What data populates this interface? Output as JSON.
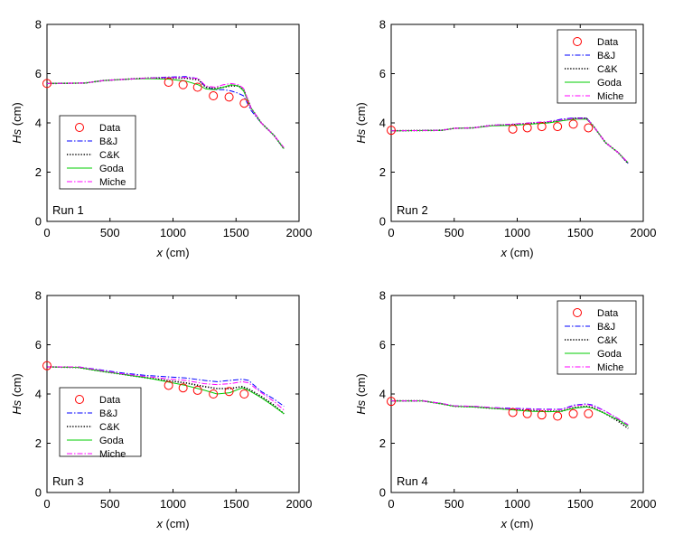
{
  "colors": {
    "data": "#ff0000",
    "bj": "#0000ff",
    "ck": "#000000",
    "goda": "#00cc00",
    "miche": "#ff00ff"
  },
  "legend_entries": [
    "Data",
    "B&J",
    "C&K",
    "Goda",
    "Miche"
  ],
  "chart_data": [
    {
      "type": "line",
      "run_label": "Run 1",
      "xlabel_var": "x",
      "xlabel_unit": " (cm)",
      "ylabel_var": "Hs",
      "ylabel_unit": " (cm)",
      "xlim": [
        0,
        2000
      ],
      "ylim": [
        0,
        8
      ],
      "xticks": [
        0,
        500,
        1000,
        1500,
        2000
      ],
      "yticks": [
        0,
        2,
        4,
        6,
        8
      ],
      "legend_position": "left-middle",
      "data_points": {
        "x": [
          0,
          965,
          1080,
          1195,
          1320,
          1445,
          1565
        ],
        "y": [
          5.6,
          5.65,
          5.55,
          5.45,
          5.1,
          5.05,
          4.8
        ]
      },
      "series": [
        {
          "name": "B&J",
          "x": [
            0,
            300,
            450,
            650,
            800,
            960,
            1100,
            1200,
            1260,
            1330,
            1400,
            1460,
            1520,
            1560,
            1620,
            1700,
            1800,
            1880
          ],
          "y": [
            5.6,
            5.62,
            5.72,
            5.78,
            5.82,
            5.86,
            5.88,
            5.8,
            5.45,
            5.35,
            5.35,
            5.3,
            5.2,
            5.1,
            4.5,
            4.0,
            3.5,
            2.95
          ]
        },
        {
          "name": "C&K",
          "x": [
            0,
            300,
            450,
            650,
            800,
            960,
            1100,
            1200,
            1260,
            1330,
            1400,
            1460,
            1520,
            1560,
            1620,
            1700,
            1800,
            1880
          ],
          "y": [
            5.6,
            5.62,
            5.72,
            5.78,
            5.82,
            5.82,
            5.82,
            5.75,
            5.45,
            5.4,
            5.45,
            5.5,
            5.5,
            5.35,
            4.6,
            4.0,
            3.5,
            2.95
          ]
        },
        {
          "name": "Goda",
          "x": [
            0,
            300,
            450,
            650,
            800,
            960,
            1100,
            1200,
            1260,
            1330,
            1400,
            1460,
            1520,
            1560,
            1620,
            1700,
            1800,
            1880
          ],
          "y": [
            5.6,
            5.62,
            5.72,
            5.78,
            5.8,
            5.78,
            5.7,
            5.55,
            5.38,
            5.35,
            5.45,
            5.55,
            5.5,
            5.3,
            4.6,
            4.0,
            3.5,
            2.95
          ]
        },
        {
          "name": "Miche",
          "x": [
            0,
            300,
            450,
            650,
            800,
            960,
            1100,
            1200,
            1260,
            1330,
            1400,
            1460,
            1520,
            1560,
            1620,
            1700,
            1800,
            1880
          ],
          "y": [
            5.6,
            5.62,
            5.72,
            5.78,
            5.82,
            5.84,
            5.85,
            5.8,
            5.5,
            5.45,
            5.55,
            5.6,
            5.55,
            5.4,
            4.6,
            4.0,
            3.5,
            3.0
          ]
        }
      ]
    },
    {
      "type": "line",
      "run_label": "Run 2",
      "xlabel_var": "x",
      "xlabel_unit": " (cm)",
      "ylabel_var": "Hs",
      "ylabel_unit": " (cm)",
      "xlim": [
        0,
        2000
      ],
      "ylim": [
        0,
        8
      ],
      "xticks": [
        0,
        500,
        1000,
        1500,
        2000
      ],
      "yticks": [
        0,
        2,
        4,
        6,
        8
      ],
      "legend_position": "top-right",
      "data_points": {
        "x": [
          0,
          965,
          1080,
          1195,
          1320,
          1445,
          1565
        ],
        "y": [
          3.7,
          3.75,
          3.8,
          3.85,
          3.85,
          3.95,
          3.8
        ]
      },
      "series": [
        {
          "name": "B&J",
          "x": [
            0,
            400,
            500,
            650,
            800,
            960,
            1100,
            1250,
            1350,
            1450,
            1550,
            1600,
            1700,
            1800,
            1880
          ],
          "y": [
            3.68,
            3.7,
            3.78,
            3.8,
            3.9,
            3.95,
            4.0,
            4.05,
            4.15,
            4.2,
            4.2,
            3.9,
            3.2,
            2.8,
            2.35
          ]
        },
        {
          "name": "C&K",
          "x": [
            0,
            400,
            500,
            650,
            800,
            960,
            1100,
            1250,
            1350,
            1450,
            1550,
            1600,
            1700,
            1800,
            1880
          ],
          "y": [
            3.68,
            3.7,
            3.78,
            3.8,
            3.9,
            3.92,
            3.98,
            4.02,
            4.1,
            4.18,
            4.18,
            3.9,
            3.2,
            2.8,
            2.35
          ]
        },
        {
          "name": "Goda",
          "x": [
            0,
            400,
            500,
            650,
            800,
            960,
            1100,
            1250,
            1350,
            1450,
            1550,
            1600,
            1700,
            1800,
            1880
          ],
          "y": [
            3.68,
            3.7,
            3.78,
            3.8,
            3.88,
            3.9,
            3.95,
            4.0,
            4.08,
            4.15,
            4.15,
            3.9,
            3.2,
            2.8,
            2.38
          ]
        },
        {
          "name": "Miche",
          "x": [
            0,
            400,
            500,
            650,
            800,
            960,
            1100,
            1250,
            1350,
            1450,
            1550,
            1600,
            1700,
            1800,
            1880
          ],
          "y": [
            3.68,
            3.7,
            3.78,
            3.8,
            3.9,
            3.95,
            4.0,
            4.05,
            4.12,
            4.18,
            4.18,
            3.9,
            3.2,
            2.8,
            2.38
          ]
        }
      ]
    },
    {
      "type": "line",
      "run_label": "Run 3",
      "xlabel_var": "x",
      "xlabel_unit": " (cm)",
      "ylabel_var": "Hs",
      "ylabel_unit": " (cm)",
      "xlim": [
        0,
        2000
      ],
      "ylim": [
        0,
        8
      ],
      "xticks": [
        0,
        500,
        1000,
        1500,
        2000
      ],
      "yticks": [
        0,
        2,
        4,
        6,
        8
      ],
      "legend_position": "left-bottom",
      "data_points": {
        "x": [
          0,
          965,
          1080,
          1195,
          1320,
          1445,
          1565
        ],
        "y": [
          5.15,
          4.35,
          4.25,
          4.15,
          4.0,
          4.1,
          4.0
        ]
      },
      "series": [
        {
          "name": "B&J",
          "x": [
            0,
            250,
            400,
            600,
            800,
            950,
            1100,
            1250,
            1350,
            1450,
            1550,
            1600,
            1700,
            1800,
            1880
          ],
          "y": [
            5.1,
            5.1,
            5.0,
            4.85,
            4.75,
            4.7,
            4.65,
            4.55,
            4.5,
            4.55,
            4.6,
            4.55,
            4.1,
            3.8,
            3.5
          ]
        },
        {
          "name": "C&K",
          "x": [
            0,
            250,
            400,
            600,
            800,
            950,
            1100,
            1250,
            1350,
            1450,
            1550,
            1600,
            1700,
            1800,
            1880
          ],
          "y": [
            5.1,
            5.08,
            4.95,
            4.8,
            4.65,
            4.55,
            4.45,
            4.3,
            4.22,
            4.22,
            4.3,
            4.2,
            3.9,
            3.55,
            3.2
          ]
        },
        {
          "name": "Goda",
          "x": [
            0,
            250,
            400,
            600,
            800,
            950,
            1100,
            1250,
            1350,
            1450,
            1550,
            1600,
            1700,
            1800,
            1880
          ],
          "y": [
            5.1,
            5.08,
            4.95,
            4.8,
            4.65,
            4.5,
            4.35,
            4.15,
            4.0,
            4.05,
            4.25,
            4.15,
            3.85,
            3.5,
            3.2
          ]
        },
        {
          "name": "Miche",
          "x": [
            0,
            250,
            400,
            600,
            800,
            950,
            1100,
            1250,
            1350,
            1450,
            1550,
            1600,
            1700,
            1800,
            1880
          ],
          "y": [
            5.1,
            5.1,
            4.98,
            4.82,
            4.7,
            4.62,
            4.55,
            4.42,
            4.38,
            4.42,
            4.5,
            4.45,
            4.05,
            3.7,
            3.35
          ]
        }
      ]
    },
    {
      "type": "line",
      "run_label": "Run 4",
      "xlabel_var": "x",
      "xlabel_unit": " (cm)",
      "ylabel_var": "Hs",
      "ylabel_unit": " (cm)",
      "xlim": [
        0,
        2000
      ],
      "ylim": [
        0,
        8
      ],
      "xticks": [
        0,
        500,
        1000,
        1500,
        2000
      ],
      "yticks": [
        0,
        2,
        4,
        6,
        8
      ],
      "legend_position": "top-right",
      "data_points": {
        "x": [
          0,
          965,
          1080,
          1195,
          1320,
          1445,
          1565
        ],
        "y": [
          3.7,
          3.25,
          3.2,
          3.15,
          3.1,
          3.2,
          3.2
        ]
      },
      "series": [
        {
          "name": "B&J",
          "x": [
            0,
            250,
            400,
            500,
            650,
            800,
            950,
            1100,
            1250,
            1350,
            1450,
            1550,
            1600,
            1700,
            1800,
            1880
          ],
          "y": [
            3.72,
            3.72,
            3.62,
            3.52,
            3.5,
            3.45,
            3.42,
            3.4,
            3.38,
            3.38,
            3.55,
            3.6,
            3.55,
            3.3,
            3.0,
            2.75
          ]
        },
        {
          "name": "C&K",
          "x": [
            0,
            250,
            400,
            500,
            650,
            800,
            950,
            1100,
            1250,
            1350,
            1450,
            1550,
            1600,
            1700,
            1800,
            1880
          ],
          "y": [
            3.72,
            3.72,
            3.6,
            3.5,
            3.48,
            3.42,
            3.38,
            3.33,
            3.3,
            3.3,
            3.45,
            3.5,
            3.45,
            3.2,
            2.9,
            2.6
          ]
        },
        {
          "name": "Goda",
          "x": [
            0,
            250,
            400,
            500,
            650,
            800,
            950,
            1100,
            1250,
            1350,
            1450,
            1550,
            1600,
            1700,
            1800,
            1880
          ],
          "y": [
            3.72,
            3.72,
            3.6,
            3.5,
            3.48,
            3.42,
            3.36,
            3.3,
            3.28,
            3.3,
            3.42,
            3.48,
            3.42,
            3.2,
            2.95,
            2.7
          ]
        },
        {
          "name": "Miche",
          "x": [
            0,
            250,
            400,
            500,
            650,
            800,
            950,
            1100,
            1250,
            1350,
            1450,
            1550,
            1600,
            1700,
            1800,
            1880
          ],
          "y": [
            3.72,
            3.72,
            3.62,
            3.52,
            3.5,
            3.45,
            3.4,
            3.38,
            3.36,
            3.36,
            3.52,
            3.58,
            3.52,
            3.3,
            3.0,
            2.75
          ]
        }
      ]
    }
  ]
}
